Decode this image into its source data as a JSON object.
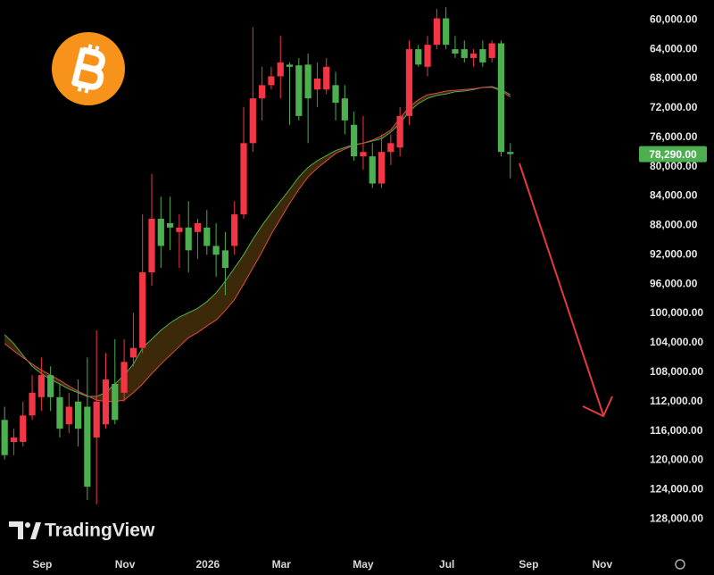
{
  "chart_data": {
    "type": "candlestick",
    "watermark": "TradingView",
    "inverted": true,
    "up_color": "#4caf50",
    "down_color": "#f23645",
    "xlim": [
      -0.5,
      68.9
    ],
    "ylim": [
      57300,
      132100
    ],
    "xticks": [
      {
        "value": 4.1,
        "label": "Sep"
      },
      {
        "value": 13.1,
        "label": "Nov"
      },
      {
        "value": 22.1,
        "label": "2026"
      },
      {
        "value": 30.1,
        "label": "Mar"
      },
      {
        "value": 39,
        "label": "May"
      },
      {
        "value": 48.1,
        "label": "Jul"
      },
      {
        "value": 57,
        "label": "Sep"
      },
      {
        "value": 65,
        "label": "Nov"
      }
    ],
    "yticks": [
      {
        "value": 60000,
        "label": "60,000.00"
      },
      {
        "value": 64000,
        "label": "64,000.00"
      },
      {
        "value": 68000,
        "label": "68,000.00"
      },
      {
        "value": 72000,
        "label": "72,000.00"
      },
      {
        "value": 76000,
        "label": "76,000.00"
      },
      {
        "value": 80000,
        "label": "80,000.00"
      },
      {
        "value": 84000,
        "label": "84,000.00"
      },
      {
        "value": 88000,
        "label": "88,000.00"
      },
      {
        "value": 92000,
        "label": "92,000.00"
      },
      {
        "value": 96000,
        "label": "96,000.00"
      },
      {
        "value": 100000,
        "label": "100,000.00"
      },
      {
        "value": 104000,
        "label": "104,000.00"
      },
      {
        "value": 108000,
        "label": "108,000.00"
      },
      {
        "value": 112000,
        "label": "112,000.00"
      },
      {
        "value": 116000,
        "label": "116,000.00"
      },
      {
        "value": 120000,
        "label": "120,000.00"
      },
      {
        "value": 124000,
        "label": "124,000.00"
      },
      {
        "value": 128000,
        "label": "128,000.00"
      }
    ],
    "last_price_label": "78,290.00",
    "candles": {
      "open": [
        114500,
        117500,
        117500,
        113900,
        111400,
        108400,
        111400,
        115100,
        112000,
        112700,
        116900,
        115100,
        109600,
        110800,
        106000,
        104700,
        94400,
        87100,
        87700,
        88900,
        88300,
        88900,
        88300,
        90800,
        91400,
        90800,
        86500,
        76800,
        70700,
        68900,
        67700,
        66100,
        66200,
        66100,
        69500,
        69500,
        68900,
        70700,
        74300,
        78600,
        78600,
        82300,
        78000,
        77400,
        73100,
        64000,
        66400,
        63400,
        59800,
        64000,
        64000,
        65200,
        64000,
        65200,
        63200,
        78000
      ],
      "high": [
        119900,
        119300,
        118100,
        114500,
        113300,
        113300,
        116900,
        116300,
        118100,
        125400,
        126000,
        115700,
        115100,
        112000,
        107200,
        105400,
        96200,
        93800,
        91400,
        93800,
        94400,
        92600,
        92000,
        95000,
        97500,
        92000,
        87100,
        78000,
        73700,
        69500,
        70700,
        74300,
        73700,
        76800,
        71900,
        70100,
        73700,
        75600,
        79200,
        80400,
        82900,
        82900,
        79800,
        78600,
        74300,
        66400,
        67700,
        64000,
        64000,
        65200,
        65800,
        66400,
        66400,
        65800,
        78600,
        81600
      ],
      "low": [
        112700,
        115700,
        112000,
        108400,
        106000,
        107200,
        109600,
        110800,
        109000,
        106000,
        102300,
        105400,
        103500,
        103500,
        99900,
        86500,
        81000,
        84100,
        84100,
        86500,
        84700,
        87100,
        85900,
        87700,
        88900,
        84700,
        71900,
        61000,
        66400,
        66400,
        62200,
        65800,
        65200,
        64600,
        65800,
        65200,
        67100,
        68900,
        72500,
        73100,
        76800,
        75600,
        75600,
        71900,
        62800,
        63400,
        62200,
        58500,
        58300,
        62200,
        62800,
        64000,
        62800,
        62800,
        62800,
        76800
      ],
      "close": [
        119300,
        116900,
        113900,
        110800,
        108400,
        111400,
        115700,
        112700,
        115700,
        123600,
        112000,
        109000,
        114500,
        106600,
        104700,
        94400,
        87100,
        90800,
        88300,
        88300,
        91400,
        87700,
        90800,
        92000,
        93800,
        86500,
        76800,
        70700,
        68900,
        67700,
        65800,
        66400,
        73100,
        70700,
        68000,
        66400,
        71300,
        73700,
        78600,
        78000,
        82300,
        78000,
        76800,
        73100,
        64000,
        66100,
        63400,
        59800,
        63400,
        64600,
        65200,
        64600,
        65800,
        63200,
        78000,
        78290
      ]
    },
    "moving_averages": [
      {
        "color": "#4caf50",
        "values": [
          102900,
          104100,
          105700,
          107200,
          108200,
          109000,
          109600,
          110300,
          110800,
          111300,
          111300,
          110800,
          109600,
          108400,
          106900,
          104700,
          103500,
          102300,
          101300,
          100500,
          99900,
          99300,
          98400,
          97200,
          95600,
          93800,
          92000,
          89900,
          88000,
          86300,
          84700,
          83100,
          81400,
          80100,
          79200,
          78500,
          77800,
          77400,
          77000,
          76800,
          76500,
          76200,
          75300,
          74100,
          72500,
          71400,
          70700,
          70300,
          70100,
          69800,
          69700,
          69500,
          69200,
          69100,
          69500,
          70200
        ]
      },
      {
        "color": "#e04848",
        "values": [
          104100,
          105100,
          106000,
          106900,
          107700,
          108400,
          109100,
          109900,
          110600,
          111200,
          111800,
          112000,
          112000,
          111800,
          110800,
          109600,
          108200,
          106900,
          105700,
          104500,
          103300,
          102600,
          101700,
          100900,
          99600,
          98100,
          96000,
          93800,
          91600,
          89200,
          87100,
          85000,
          83100,
          81400,
          80200,
          79200,
          78200,
          77600,
          77100,
          76800,
          76400,
          75800,
          75000,
          73400,
          71900,
          70900,
          70200,
          70000,
          69700,
          69600,
          69500,
          69400,
          69200,
          69200,
          69700,
          70500
        ]
      }
    ]
  }
}
